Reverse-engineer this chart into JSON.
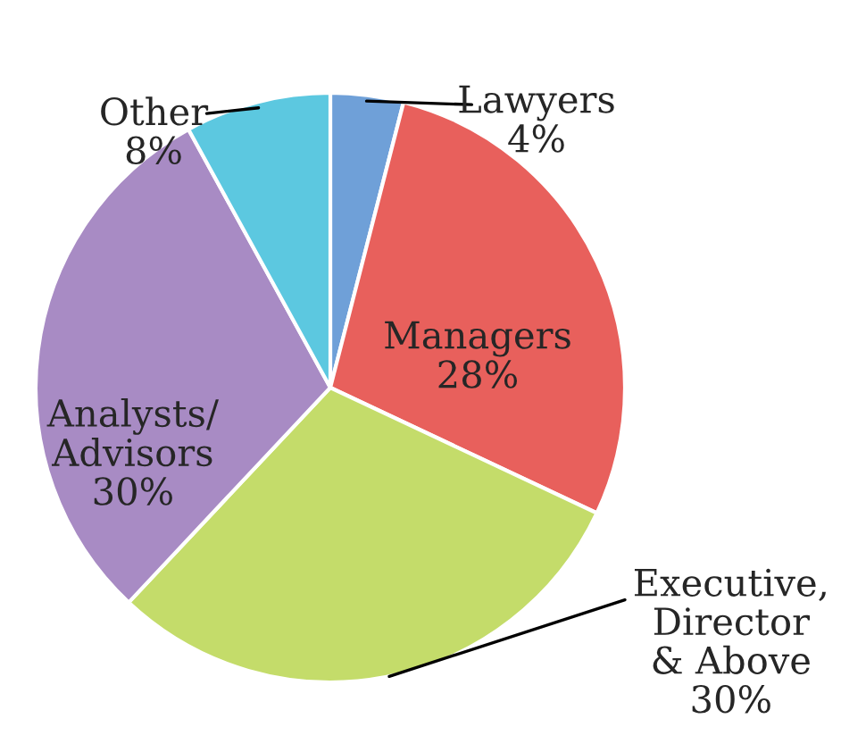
{
  "chart_data": {
    "type": "pie",
    "categories": [
      "Lawyers",
      "Managers",
      "Executive,\nDirector\n& Above",
      "Analysts/\nAdvisors",
      "Other"
    ],
    "values": [
      4,
      28,
      30,
      30,
      8
    ],
    "value_labels": [
      "4%",
      "28%",
      "30%",
      "30%",
      "8%"
    ],
    "colors": [
      "#6fa0d8",
      "#e8605c",
      "#c4dc6a",
      "#a88bc4",
      "#5cc8e0"
    ]
  }
}
